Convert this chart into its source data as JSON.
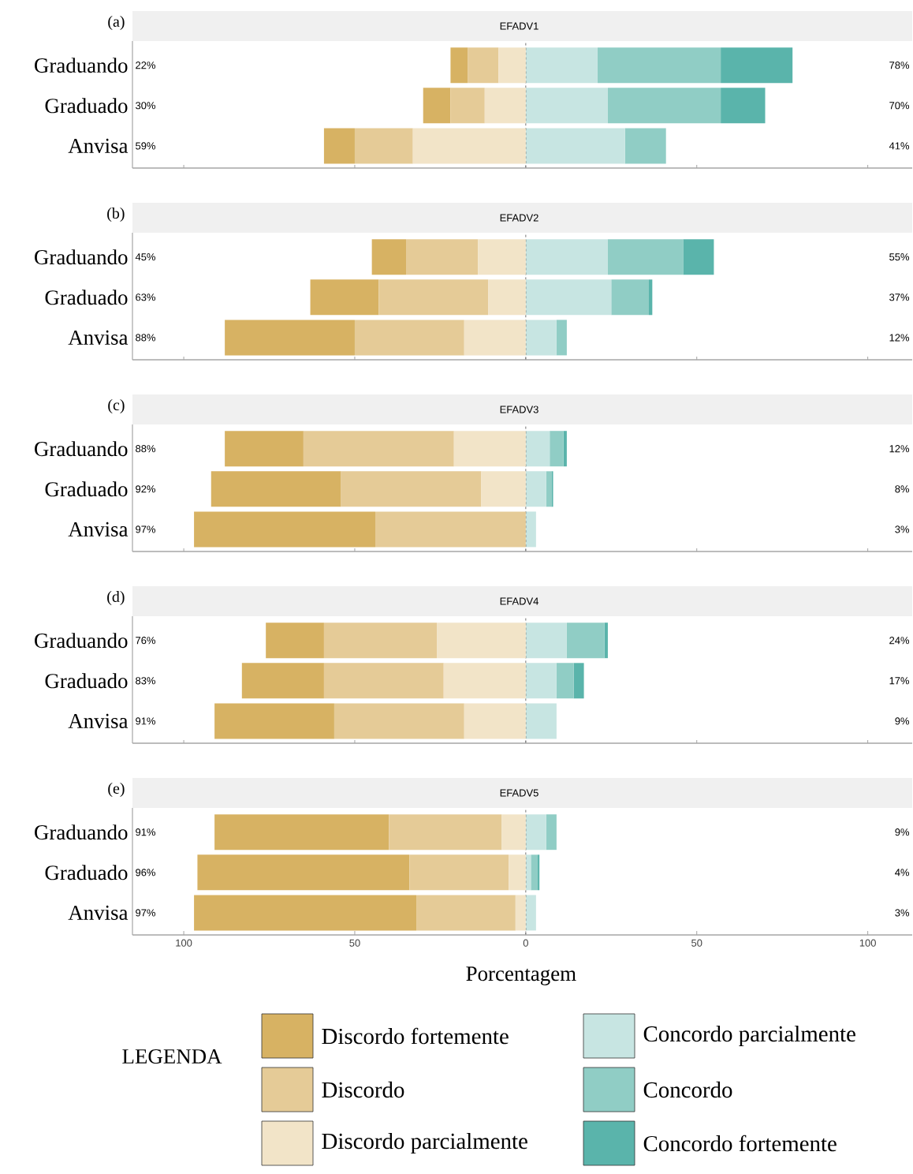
{
  "chart_data": [
    {
      "type": "bar",
      "orientation": "horizontal",
      "stacked": true,
      "title": "(a)",
      "subtitle": "EFADV1",
      "categories": [
        "Graduando",
        "Graduado",
        "Anvisa"
      ],
      "series": [
        {
          "color": "#d7b263",
          "values": [
            -5,
            -8,
            -9
          ]
        },
        {
          "color": "#e5cb97",
          "values": [
            -9,
            -10,
            -17
          ]
        },
        {
          "color": "#f2e4c8",
          "values": [
            -8,
            -12,
            -33
          ]
        },
        {
          "color": "#c7e5e2",
          "values": [
            21,
            24,
            29
          ]
        },
        {
          "color": "#90cdc5",
          "values": [
            36,
            33,
            12
          ]
        },
        {
          "color": "#5ab4ab",
          "values": [
            21,
            13,
            0
          ]
        }
      ],
      "totals": [
        [
          "22%",
          "78%"
        ],
        [
          "30%",
          "70%"
        ],
        [
          "59%",
          "41%"
        ]
      ],
      "xlim": [
        -115,
        113
      ],
      "xticks": [
        {
          "value": -100,
          "label": null
        },
        {
          "value": -50,
          "label": null
        },
        {
          "value": 0,
          "label": null
        },
        {
          "value": 50,
          "label": null
        },
        {
          "value": 100,
          "label": null
        }
      ],
      "ref_lines": [
        {
          "axis": "x",
          "value": 0,
          "line_style": "dashed"
        }
      ],
      "tick_labels": "y"
    },
    {
      "type": "bar",
      "orientation": "horizontal",
      "stacked": true,
      "title": "(b)",
      "subtitle": "EFADV2",
      "categories": [
        "Graduando",
        "Graduado",
        "Anvisa"
      ],
      "series": [
        {
          "color": "#d7b263",
          "values": [
            -10,
            -20,
            -38
          ]
        },
        {
          "color": "#e5cb97",
          "values": [
            -21,
            -32,
            -32
          ]
        },
        {
          "color": "#f2e4c8",
          "values": [
            -14,
            -11,
            -18
          ]
        },
        {
          "color": "#c7e5e2",
          "values": [
            24,
            25,
            9
          ]
        },
        {
          "color": "#90cdc5",
          "values": [
            22,
            11,
            3
          ]
        },
        {
          "color": "#5ab4ab",
          "values": [
            9,
            1,
            0
          ]
        }
      ],
      "totals": [
        [
          "45%",
          "55%"
        ],
        [
          "63%",
          "37%"
        ],
        [
          "88%",
          "12%"
        ]
      ],
      "xlim": [
        -115,
        113
      ],
      "xticks": [
        {
          "value": -100,
          "label": null
        },
        {
          "value": -50,
          "label": null
        },
        {
          "value": 0,
          "label": null
        },
        {
          "value": 50,
          "label": null
        },
        {
          "value": 100,
          "label": null
        }
      ],
      "ref_lines": [
        {
          "axis": "x",
          "value": 0,
          "line_style": "dashed"
        }
      ],
      "tick_labels": "y"
    },
    {
      "type": "bar",
      "orientation": "horizontal",
      "stacked": true,
      "title": "(c)",
      "subtitle": "EFADV3",
      "categories": [
        "Graduando",
        "Graduado",
        "Anvisa"
      ],
      "series": [
        {
          "color": "#d7b263",
          "values": [
            -23,
            -38,
            -53
          ]
        },
        {
          "color": "#e5cb97",
          "values": [
            -44,
            -41,
            -44
          ]
        },
        {
          "color": "#f2e4c8",
          "values": [
            -21,
            -13,
            0
          ]
        },
        {
          "color": "#c7e5e2",
          "values": [
            7,
            6,
            3
          ]
        },
        {
          "color": "#90cdc5",
          "values": [
            4,
            1.5,
            0
          ]
        },
        {
          "color": "#5ab4ab",
          "values": [
            1,
            0.5,
            0
          ]
        }
      ],
      "totals": [
        [
          "88%",
          "12%"
        ],
        [
          "92%",
          "8%"
        ],
        [
          "97%",
          "3%"
        ]
      ],
      "xlim": [
        -115,
        113
      ],
      "xticks": [
        {
          "value": -100,
          "label": null
        },
        {
          "value": -50,
          "label": null
        },
        {
          "value": 0,
          "label": null
        },
        {
          "value": 50,
          "label": null
        },
        {
          "value": 100,
          "label": null
        }
      ],
      "ref_lines": [
        {
          "axis": "x",
          "value": 0,
          "line_style": "dashed"
        }
      ],
      "tick_labels": "y"
    },
    {
      "type": "bar",
      "orientation": "horizontal",
      "stacked": true,
      "title": "(d)",
      "subtitle": "EFADV4",
      "categories": [
        "Graduando",
        "Graduado",
        "Anvisa"
      ],
      "series": [
        {
          "color": "#d7b263",
          "values": [
            -17,
            -24,
            -35
          ]
        },
        {
          "color": "#e5cb97",
          "values": [
            -33,
            -35,
            -38
          ]
        },
        {
          "color": "#f2e4c8",
          "values": [
            -26,
            -24,
            -18
          ]
        },
        {
          "color": "#c7e5e2",
          "values": [
            12,
            9,
            9
          ]
        },
        {
          "color": "#90cdc5",
          "values": [
            11,
            5,
            0
          ]
        },
        {
          "color": "#5ab4ab",
          "values": [
            1,
            3,
            0
          ]
        }
      ],
      "totals": [
        [
          "76%",
          "24%"
        ],
        [
          "83%",
          "17%"
        ],
        [
          "91%",
          "9%"
        ]
      ],
      "xlim": [
        -115,
        113
      ],
      "xticks": [
        {
          "value": -100,
          "label": null
        },
        {
          "value": -50,
          "label": null
        },
        {
          "value": 0,
          "label": null
        },
        {
          "value": 50,
          "label": null
        },
        {
          "value": 100,
          "label": null
        }
      ],
      "ref_lines": [
        {
          "axis": "x",
          "value": 0,
          "line_style": "dashed"
        }
      ],
      "tick_labels": "y"
    },
    {
      "type": "bar",
      "orientation": "horizontal",
      "stacked": true,
      "title": "(e)",
      "subtitle": "EFADV5",
      "categories": [
        "Graduando",
        "Graduado",
        "Anvisa"
      ],
      "series": [
        {
          "name": "Discordo fortemente",
          "color": "#d7b263",
          "values": [
            -51,
            -62,
            -65
          ]
        },
        {
          "name": "Discordo",
          "color": "#e5cb97",
          "values": [
            -33,
            -29,
            -29
          ]
        },
        {
          "name": "Discordo parcialmente",
          "color": "#f2e4c8",
          "values": [
            -7,
            -5,
            -3
          ]
        },
        {
          "name": "Concordo parcialmente",
          "color": "#c7e5e2",
          "values": [
            6,
            1.5,
            3
          ]
        },
        {
          "name": "Concordo",
          "color": "#90cdc5",
          "values": [
            3,
            2,
            0
          ]
        },
        {
          "name": "Concordo fortemente",
          "color": "#5ab4ab",
          "values": [
            0,
            0.5,
            0
          ]
        }
      ],
      "totals": [
        [
          "91%",
          "9%"
        ],
        [
          "96%",
          "4%"
        ],
        [
          "97%",
          "3%"
        ]
      ],
      "xlim": [
        -115,
        113
      ],
      "xticks": [
        {
          "value": -100,
          "label": "100"
        },
        {
          "value": -50,
          "label": "50"
        },
        0,
        50,
        100
      ],
      "ref_lines": [
        {
          "axis": "x",
          "value": 0,
          "line_style": "dashed"
        }
      ],
      "xlabel": "Porcentagem",
      "legend": "bottom",
      "legend_title": "LEGENDA"
    }
  ]
}
